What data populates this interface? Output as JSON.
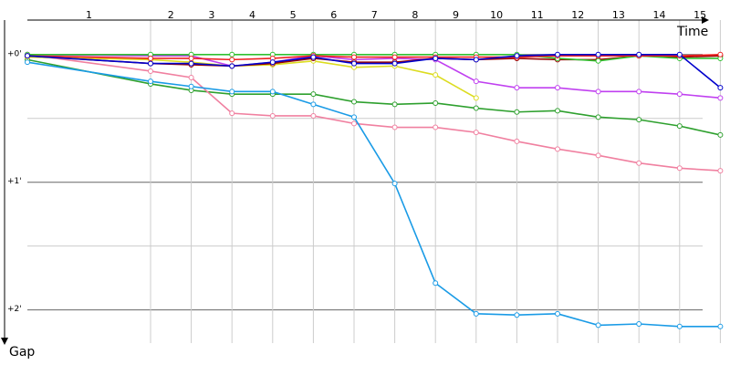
{
  "chart_data": {
    "type": "line",
    "x_label": "Time",
    "y_label": "Gap",
    "x": [
      0,
      1,
      2,
      3,
      4,
      5,
      6,
      7,
      8,
      9,
      10,
      11,
      12,
      13,
      14,
      15
    ],
    "xticks": [
      {
        "value": 0.5,
        "label": "1"
      },
      {
        "value": 1.5,
        "label": "2"
      },
      {
        "value": 2.5,
        "label": "3"
      },
      {
        "value": 3.5,
        "label": "4"
      },
      {
        "value": 4.5,
        "label": "5"
      },
      {
        "value": 5.5,
        "label": "6"
      },
      {
        "value": 6.5,
        "label": "7"
      },
      {
        "value": 7.5,
        "label": "8"
      },
      {
        "value": 8.5,
        "label": "9"
      },
      {
        "value": 9.5,
        "label": "10"
      },
      {
        "value": 10.5,
        "label": "11"
      },
      {
        "value": 11.5,
        "label": "12"
      },
      {
        "value": 12.5,
        "label": "13"
      },
      {
        "value": 13.5,
        "label": "14"
      },
      {
        "value": 14.5,
        "label": "15"
      }
    ],
    "ylim": [
      -0.27,
      2.26
    ],
    "yticks": [
      {
        "value": 0,
        "label": "+0'"
      },
      {
        "value": 1,
        "label": "+1'"
      },
      {
        "value": 2,
        "label": "+2'"
      }
    ],
    "minor_yticks": [
      0.5,
      1.5
    ],
    "grid": true,
    "series": [
      {
        "color": "#2ea02e",
        "values": [
          0.04,
          0.23,
          0.28,
          0.31,
          0.31,
          0.31,
          0.37,
          0.39,
          0.38,
          0.42,
          0.45,
          0.44,
          0.49,
          0.51,
          0.56,
          0.63
        ]
      },
      {
        "color": "#f080a0",
        "values": [
          0,
          0.13,
          0.18,
          0.46,
          0.48,
          0.48,
          0.54,
          0.57,
          0.57,
          0.61,
          0.68,
          0.74,
          0.79,
          0.85,
          0.89,
          0.91
        ]
      },
      {
        "color": "#dcdc20",
        "values": [
          0.02,
          0.04,
          0.06,
          0.09,
          0.08,
          0.05,
          0.1,
          0.09,
          0.16,
          0.34,
          null,
          null,
          null,
          null,
          null,
          null
        ]
      },
      {
        "color": "#c040f0",
        "values": [
          0,
          0.01,
          0.01,
          0.09,
          0.06,
          0.01,
          0.04,
          0.03,
          0.04,
          0.21,
          0.26,
          0.26,
          0.29,
          0.29,
          0.31,
          0.34
        ]
      },
      {
        "color": "#990000",
        "values": [
          0.01,
          0.07,
          0.08,
          0.09,
          0.07,
          0.03,
          0.06,
          0.06,
          0.03,
          0.04,
          0.03,
          0.04,
          0.04,
          0.01,
          0.02,
          0.01
        ]
      },
      {
        "color": "#30c030",
        "values": [
          0,
          0,
          0,
          0,
          0,
          0,
          0,
          0,
          0,
          0,
          0,
          0.03,
          0.05,
          0.01,
          0.03,
          0.03
        ]
      },
      {
        "color": "#ee2020",
        "values": [
          0.01,
          0.03,
          0.03,
          0.04,
          0.03,
          0.01,
          0.02,
          0.02,
          0.02,
          0.02,
          0.02,
          0.01,
          0.01,
          0.01,
          0.01,
          0
        ]
      },
      {
        "color": "#0000cc",
        "values": [
          0.01,
          0.07,
          0.07,
          0.09,
          0.06,
          0.02,
          0.07,
          0.07,
          0.03,
          0.04,
          0.01,
          0,
          0,
          0,
          0,
          0.26
        ]
      },
      {
        "color": "#1a9be6",
        "values": [
          0.06,
          0.21,
          0.25,
          0.29,
          0.29,
          0.39,
          0.49,
          1.01,
          1.79,
          2.03,
          2.04,
          2.03,
          2.12,
          2.11,
          2.13,
          2.13
        ]
      }
    ]
  }
}
